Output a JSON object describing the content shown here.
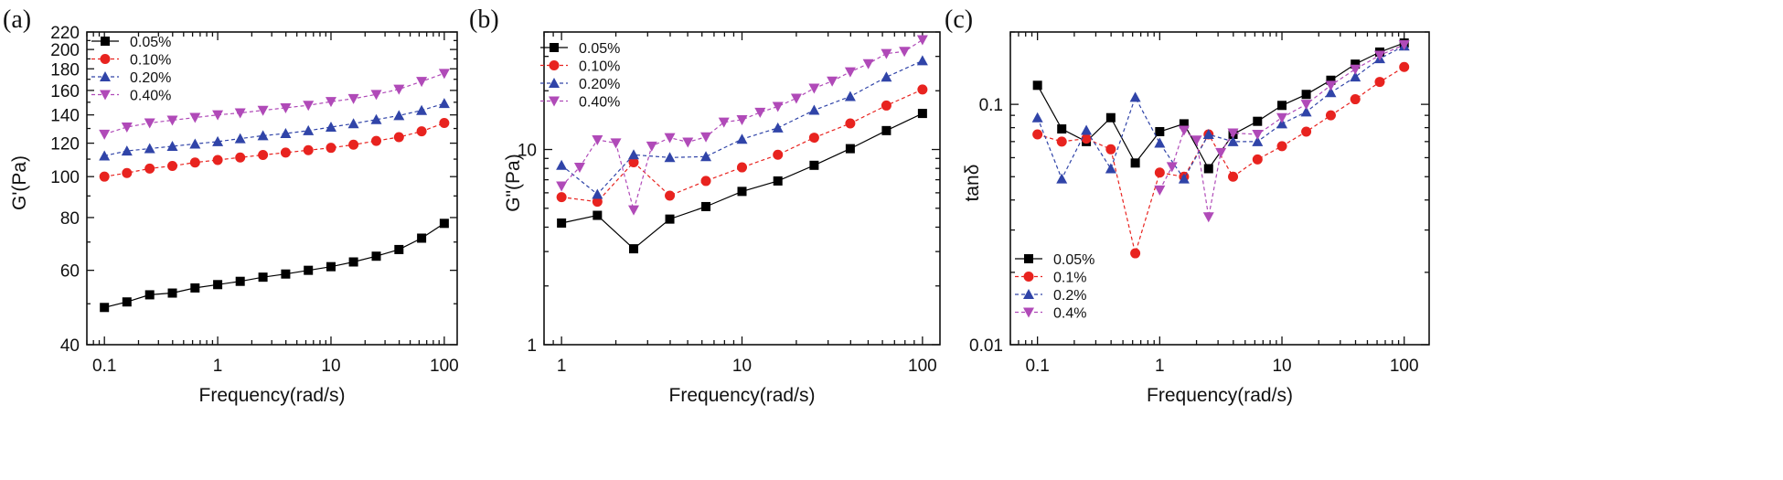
{
  "chart_data": [
    {
      "type": "line",
      "panel_label": "(a)",
      "xlabel": "Frequency(rad/s)",
      "ylabel": "G'(Pa)",
      "xscale": "log",
      "yscale": "log",
      "xlim": [
        0.07,
        130
      ],
      "ylim": [
        40,
        220
      ],
      "x_ticks": [
        {
          "v": 0.1,
          "label": "0.1"
        },
        {
          "v": 1,
          "label": "1"
        },
        {
          "v": 10,
          "label": "10"
        },
        {
          "v": 100,
          "label": "100"
        }
      ],
      "y_ticks": [
        {
          "v": 40,
          "label": "40"
        },
        {
          "v": 60,
          "label": "60"
        },
        {
          "v": 80,
          "label": "80"
        },
        {
          "v": 100,
          "label": "100"
        },
        {
          "v": 120,
          "label": "120"
        },
        {
          "v": 140,
          "label": "140"
        },
        {
          "v": 160,
          "label": "160"
        },
        {
          "v": 180,
          "label": "180"
        },
        {
          "v": 200,
          "label": "200"
        },
        {
          "v": 220,
          "label": "220"
        }
      ],
      "legend_position": "top-left",
      "x": [
        0.1,
        0.158,
        0.251,
        0.398,
        0.631,
        1,
        1.58,
        2.51,
        3.98,
        6.31,
        10,
        15.8,
        25.1,
        39.8,
        63.1,
        100
      ],
      "series": [
        {
          "name": "0.05%",
          "marker": "square",
          "color": "#000000",
          "values": [
            49,
            50.5,
            52.5,
            53,
            54.5,
            55.5,
            56.5,
            57.8,
            58.8,
            60,
            61.2,
            62.8,
            64.8,
            67.2,
            71.5,
            77.5
          ]
        },
        {
          "name": "0.10%",
          "marker": "circle",
          "color": "#e8231f",
          "values": [
            100,
            102,
            104.5,
            106,
            108,
            109.5,
            111,
            112.5,
            114,
            115.5,
            117,
            119,
            121.5,
            124,
            128,
            134
          ]
        },
        {
          "name": "0.20%",
          "marker": "triangle-up",
          "color": "#3044a8",
          "values": [
            112,
            115,
            116.5,
            118,
            119.5,
            121,
            123,
            125,
            126.5,
            128.5,
            131,
            133.5,
            136.5,
            139.5,
            143.5,
            149
          ]
        },
        {
          "name": "0.40%",
          "marker": "triangle-down",
          "color": "#b04ab8",
          "values": [
            126,
            131,
            134,
            136,
            138,
            140,
            141.5,
            143.5,
            145.5,
            147.5,
            150.5,
            153,
            156.5,
            161,
            168,
            175.5
          ]
        }
      ]
    },
    {
      "type": "line",
      "panel_label": "(b)",
      "xlabel": "Frequency(rad/s)",
      "ylabel": "G\"(Pa)",
      "xscale": "log",
      "yscale": "log",
      "xlim": [
        0.8,
        125
      ],
      "ylim": [
        1,
        40
      ],
      "x_ticks": [
        {
          "v": 1,
          "label": "1"
        },
        {
          "v": 10,
          "label": "10"
        },
        {
          "v": 100,
          "label": "100"
        }
      ],
      "y_ticks": [
        {
          "v": 1,
          "label": "1"
        },
        {
          "v": 10,
          "label": "10"
        }
      ],
      "legend_position": "top-left",
      "x": [
        1,
        1.58,
        2.51,
        3.98,
        6.31,
        10,
        15.8,
        25.1,
        39.8,
        63.1,
        100
      ],
      "series": [
        {
          "name": "0.05%",
          "marker": "square",
          "color": "#000000",
          "values": [
            4.2,
            4.6,
            3.1,
            4.4,
            5.1,
            6.1,
            6.9,
            8.3,
            10.1,
            12.5,
            15.3
          ]
        },
        {
          "name": "0.10%",
          "marker": "circle",
          "color": "#e8231f",
          "values": [
            5.7,
            5.4,
            8.6,
            5.8,
            6.9,
            8.1,
            9.4,
            11.5,
            13.6,
            16.8,
            20.3
          ]
        },
        {
          "name": "0.20%",
          "marker": "triangle-up",
          "color": "#3044a8",
          "values": [
            8.3,
            5.9,
            9.4,
            9.1,
            9.2,
            11.3,
            12.9,
            15.9,
            18.7,
            23.5,
            28.5
          ]
        },
        {
          "name": "0.40%",
          "marker": "triangle-down",
          "color": "#b04ab8",
          "values": [
            6.5,
            11.2,
            4.9,
            11.5,
            11.6,
            14.2,
            16.6,
            20.6,
            25,
            31,
            36.5
          ]
        }
      ],
      "series_extra_x": {
        "0.40%": [
          1,
          1.26,
          1.58,
          2,
          2.51,
          3.16,
          3.98,
          5.01,
          6.31,
          7.94,
          10,
          12.6,
          15.8,
          20,
          25.1,
          31.6,
          39.8,
          50.1,
          63.1,
          79.4,
          100
        ]
      },
      "series_extra_values": {
        "0.40%": [
          6.5,
          8.1,
          11.2,
          10.8,
          4.9,
          10.4,
          11.5,
          10.9,
          11.6,
          13.8,
          14.2,
          15.5,
          16.6,
          18.3,
          20.6,
          22.4,
          25,
          27.5,
          31,
          31.8,
          36.5
        ]
      }
    },
    {
      "type": "line",
      "panel_label": "(c)",
      "xlabel": "Frequency(rad/s)",
      "ylabel": "tanδ",
      "xscale": "log",
      "yscale": "log",
      "xlim": [
        0.06,
        160
      ],
      "ylim": [
        0.01,
        0.2
      ],
      "x_ticks": [
        {
          "v": 0.1,
          "label": "0.1"
        },
        {
          "v": 1,
          "label": "1"
        },
        {
          "v": 10,
          "label": "10"
        },
        {
          "v": 100,
          "label": "100"
        }
      ],
      "y_ticks": [
        {
          "v": 0.01,
          "label": "0.01"
        },
        {
          "v": 0.1,
          "label": "0.1"
        }
      ],
      "legend_position": "bottom-left",
      "x": [
        0.1,
        0.158,
        0.251,
        0.398,
        0.631,
        1,
        1.26,
        1.58,
        2,
        2.51,
        3.16,
        3.98,
        6.31,
        10,
        15.8,
        25.1,
        39.8,
        63.1,
        100
      ],
      "series": [
        {
          "name": "0.05%",
          "marker": "square",
          "color": "#000000",
          "values": [
            0.12,
            0.079,
            0.07,
            0.088,
            0.057,
            0.077,
            null,
            0.083,
            null,
            0.054,
            null,
            0.075,
            0.085,
            0.099,
            0.11,
            0.126,
            0.147,
            0.165,
            0.18
          ]
        },
        {
          "name": "0.1%",
          "marker": "circle",
          "color": "#e8231f",
          "values": [
            0.075,
            0.07,
            0.072,
            0.065,
            0.024,
            0.052,
            null,
            0.05,
            null,
            0.075,
            null,
            0.05,
            0.059,
            0.067,
            0.077,
            0.09,
            0.105,
            0.124,
            0.143
          ]
        },
        {
          "name": "0.2%",
          "marker": "triangle-up",
          "color": "#3044a8",
          "values": [
            0.088,
            0.049,
            0.078,
            0.054,
            0.107,
            0.069,
            null,
            0.049,
            null,
            0.075,
            null,
            0.07,
            0.07,
            0.083,
            0.093,
            0.112,
            0.13,
            0.155,
            0.175
          ]
        },
        {
          "name": "0.4%",
          "marker": "triangle-down",
          "color": "#b04ab8",
          "values": [
            null,
            null,
            null,
            null,
            null,
            0.044,
            0.055,
            0.078,
            0.071,
            0.034,
            0.063,
            0.076,
            0.075,
            0.088,
            0.1,
            0.12,
            0.14,
            0.16,
            0.177
          ]
        }
      ]
    }
  ]
}
